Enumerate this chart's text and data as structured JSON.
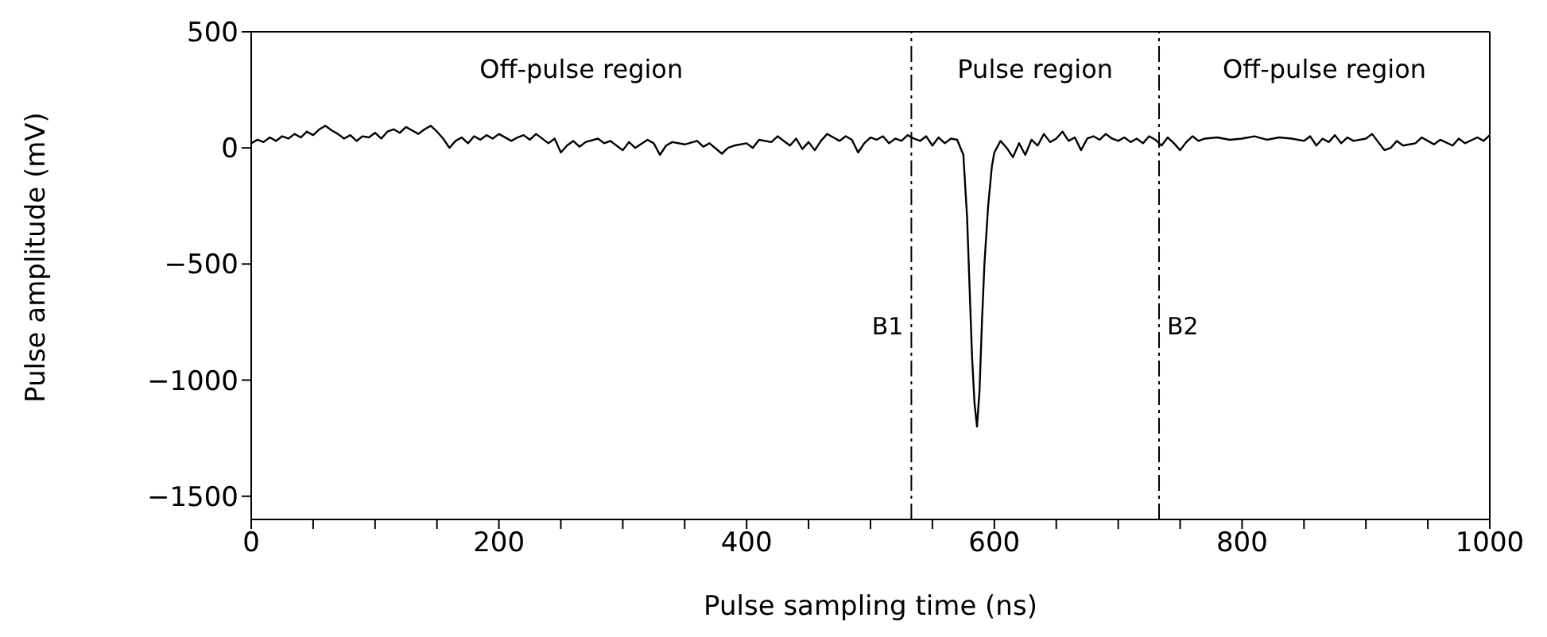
{
  "chart_data": {
    "type": "line",
    "xlabel": "Pulse sampling time (ns)",
    "ylabel": "Pulse amplitude (mV)",
    "annotations": [
      "Off-pulse region",
      "Pulse region",
      "Off-pulse region"
    ],
    "xlim": [
      0,
      1000
    ],
    "ylim": [
      -1600,
      500
    ],
    "xticks": [
      0,
      {
        "value": 50,
        "label": null
      },
      200,
      {
        "value": 100,
        "label": null
      },
      {
        "value": 150,
        "label": null
      },
      {
        "value": 250,
        "label": null
      },
      {
        "value": 300,
        "label": null
      },
      {
        "value": 350,
        "label": null
      },
      400,
      {
        "value": 450,
        "label": null
      },
      {
        "value": 500,
        "label": null
      },
      {
        "value": 550,
        "label": null
      },
      600,
      {
        "value": 650,
        "label": null
      },
      {
        "value": 700,
        "label": null
      },
      {
        "value": 750,
        "label": null
      },
      800,
      {
        "value": 850,
        "label": null
      },
      {
        "value": 900,
        "label": null
      },
      {
        "value": 950,
        "label": null
      },
      1000
    ],
    "yticks": [
      -1500,
      -1000,
      -500,
      0,
      500
    ],
    "ref_lines": [
      {
        "axis": "x",
        "value": 533,
        "label": "B1",
        "line_style": "dashed"
      },
      {
        "axis": "x",
        "value": 733,
        "label": "B2",
        "line_style": "dashed"
      }
    ],
    "marker": "none",
    "grid": false,
    "legend": false,
    "series": [
      {
        "color": "#000000",
        "x": [
          0,
          5,
          10,
          15,
          20,
          25,
          30,
          35,
          40,
          45,
          50,
          55,
          60,
          65,
          70,
          75,
          80,
          85,
          90,
          95,
          100,
          105,
          110,
          115,
          120,
          125,
          130,
          135,
          140,
          145,
          150,
          155,
          160,
          165,
          170,
          175,
          180,
          185,
          190,
          195,
          200,
          210,
          215,
          220,
          225,
          230,
          240,
          245,
          250,
          255,
          260,
          265,
          270,
          280,
          285,
          290,
          300,
          305,
          310,
          320,
          325,
          330,
          335,
          340,
          350,
          360,
          365,
          370,
          380,
          385,
          390,
          400,
          405,
          410,
          420,
          425,
          430,
          435,
          440,
          445,
          450,
          455,
          460,
          465,
          470,
          475,
          480,
          485,
          490,
          495,
          500,
          505,
          510,
          515,
          520,
          525,
          530,
          535,
          540,
          545,
          550,
          555,
          560,
          565,
          570,
          575,
          578,
          580,
          582,
          584,
          586,
          588,
          590,
          592,
          595,
          598,
          600,
          605,
          610,
          615,
          620,
          625,
          630,
          635,
          640,
          645,
          650,
          655,
          660,
          665,
          670,
          675,
          680,
          685,
          690,
          695,
          700,
          705,
          710,
          715,
          720,
          725,
          730,
          735,
          740,
          745,
          750,
          755,
          760,
          765,
          770,
          780,
          790,
          800,
          810,
          820,
          830,
          840,
          850,
          855,
          860,
          865,
          870,
          875,
          880,
          885,
          890,
          900,
          905,
          910,
          915,
          920,
          925,
          930,
          940,
          945,
          950,
          955,
          960,
          970,
          975,
          980,
          990,
          995,
          1000
        ],
        "values": [
          20,
          35,
          25,
          45,
          30,
          50,
          40,
          60,
          45,
          70,
          55,
          80,
          95,
          75,
          60,
          40,
          55,
          30,
          50,
          45,
          65,
          40,
          70,
          80,
          65,
          90,
          75,
          60,
          80,
          95,
          70,
          40,
          0,
          30,
          45,
          20,
          50,
          35,
          55,
          40,
          60,
          30,
          45,
          55,
          35,
          60,
          20,
          40,
          -20,
          10,
          30,
          5,
          25,
          40,
          20,
          30,
          -10,
          25,
          0,
          35,
          20,
          -30,
          10,
          25,
          15,
          30,
          5,
          20,
          -25,
          0,
          10,
          20,
          0,
          35,
          25,
          50,
          30,
          10,
          40,
          -5,
          25,
          -10,
          30,
          60,
          45,
          30,
          50,
          35,
          -20,
          20,
          45,
          35,
          50,
          20,
          40,
          30,
          55,
          40,
          30,
          50,
          10,
          45,
          20,
          40,
          35,
          -30,
          -300,
          -600,
          -900,
          -1100,
          -1200,
          -1050,
          -750,
          -500,
          -250,
          -80,
          -20,
          30,
          0,
          -40,
          20,
          -30,
          35,
          10,
          60,
          25,
          40,
          70,
          30,
          45,
          -10,
          40,
          50,
          35,
          60,
          40,
          30,
          45,
          25,
          40,
          20,
          50,
          35,
          10,
          45,
          20,
          -10,
          25,
          50,
          30,
          40,
          45,
          35,
          40,
          50,
          35,
          45,
          40,
          30,
          50,
          10,
          40,
          25,
          55,
          20,
          45,
          30,
          40,
          60,
          25,
          -10,
          0,
          30,
          10,
          20,
          45,
          30,
          15,
          35,
          10,
          40,
          20,
          45,
          30,
          55
        ]
      }
    ]
  }
}
